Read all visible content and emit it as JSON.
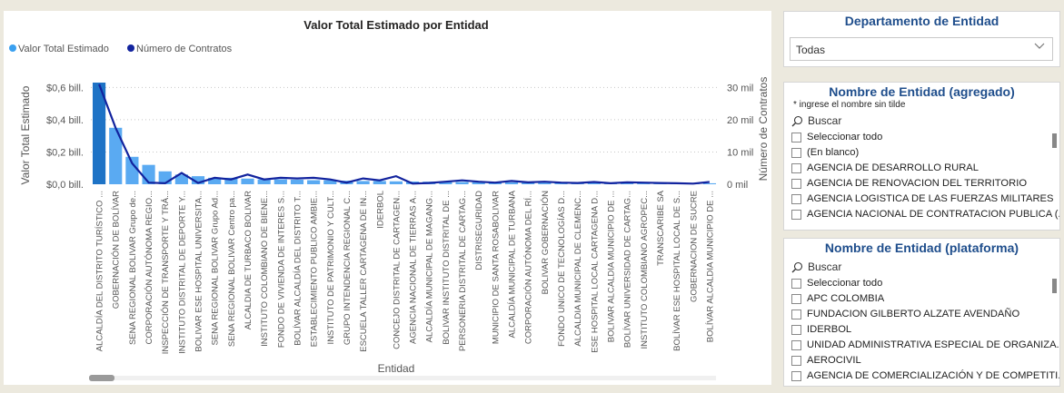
{
  "colors": {
    "bar": "#5aaaf2",
    "bar_highlight": "#1e73c6",
    "line": "#12239e",
    "title": "#1f4e8c"
  },
  "chart": {
    "title": "Valor Total Estimado por Entidad",
    "legend": [
      {
        "label": "Valor Total Estimado",
        "color": "#3aa0f0"
      },
      {
        "label": "Número de Contratos",
        "color": "#12239e"
      }
    ]
  },
  "chart_data": {
    "type": "bar",
    "title": "Valor Total Estimado por Entidad",
    "xlabel": "Entidad",
    "ylabel": "Valor Total Estimado",
    "y2label": "Número de Contratos",
    "yticks": [
      "$0,0 bill.",
      "$0,2 bill.",
      "$0,4 bill.",
      "$0,6 bill."
    ],
    "y2ticks": [
      "0 mil",
      "10 mil",
      "20 mil",
      "30 mil"
    ],
    "ylim": [
      0,
      0.63
    ],
    "y2lim": [
      0,
      31500
    ],
    "legend_position": "top-left",
    "grid": true,
    "categories": [
      "ALCALDÍA DEL DISTRITO TURÍSTICO ...",
      "GOBERNACIÓN DE BOLÍVAR",
      "SENA REGIONAL BOLIVAR Grupo de...",
      "CORPORACIÓN AUTÓNOMA REGIO...",
      "INSPECCIÓN DE TRANSPORTE Y TRÁ...",
      "INSTITUTO DISTRITAL DE DEPORTE Y...",
      "BOLIVAR ESE HOSPITAL UNIVERSITA...",
      "SENA REGIONAL BOLIVAR Grupo Ad...",
      "SENA REGIONAL BOLIVAR Centro pa...",
      "ALCALDIA DE TURBACO BOLIVAR",
      "INSTITUTO COLOMBIANO DE BIENE...",
      "FONDO DE VIVIENDA DE INTERES S...",
      "BOLÍVAR ALCALDÍA DEL DISTRITO T...",
      "ESTABLECIMIENTO PUBLICO AMBIE...",
      "INSTITUTO DE PATRIMONIO Y CULT...",
      "GRUPO INTENDENCIA REGIONAL C...",
      "ESCUELA TALLER CARTAGENA DE IN...",
      "IDERBOL",
      "CONCEJO DISTRITAL DE CARTAGEN...",
      "AGENCIA NACIONAL DE TIERRAS A...",
      "ALCALDÍA MUNICIPAL DE MAGANG...",
      "BOLIVAR INSTITUTO DISTRITAL DE ...",
      "PERSONERIA DISTRITAL DE CARTAG...",
      "DISTRISEGURIDAD",
      "MUNICIPIO DE SANTA ROSABOLIVAR",
      "ALCALDÍA MUNICIPAL DE TURBANA",
      "CORPORACIÓN AUTÓNOMA DEL RÍ...",
      "BOLIVAR GOBERNACIÓN",
      "FONDO UNICO DE TECNOLOGÍAS D...",
      "ALCALDIA MUNICIPAL DE CLEMENC...",
      "ESE HOSPITAL LOCAL CARTAGENA D...",
      "BOLIVAR ALCALDIA MUNICIPIO DE ...",
      "BOLÍVAR UNIVERSIDAD DE CARTAG...",
      "INSTITUTO COLOMBIANO AGROPEC...",
      "TRANSCARIBE SA",
      "BOLÍVAR ESE HOSPITAL LOCAL DE S...",
      "GOBERNACION DE SUCRE",
      "BOLÍVAR ALCALDIA MUNICIPIO DE ..."
    ],
    "series": [
      {
        "name": "Valor Total Estimado",
        "values": [
          0.63,
          0.35,
          0.17,
          0.12,
          0.08,
          0.06,
          0.05,
          0.04,
          0.04,
          0.035,
          0.03,
          0.03,
          0.028,
          0.025,
          0.025,
          0.022,
          0.02,
          0.02,
          0.018,
          0.017,
          0.016,
          0.015,
          0.014,
          0.013,
          0.012,
          0.012,
          0.011,
          0.01,
          0.01,
          0.009,
          0.009,
          0.008,
          0.008,
          0.007,
          0.007,
          0.006,
          0.006,
          0.006
        ]
      },
      {
        "name": "Número de Contratos",
        "values": [
          31000,
          17500,
          6500,
          500,
          300,
          3500,
          400,
          2000,
          1500,
          3000,
          1500,
          2000,
          1800,
          2000,
          1500,
          500,
          1800,
          1200,
          2500,
          200,
          400,
          800,
          1200,
          800,
          500,
          1000,
          600,
          800,
          500,
          400,
          700,
          300,
          600,
          500,
          400,
          300,
          200,
          700
        ]
      }
    ]
  },
  "slicers": {
    "departamento": {
      "title": "Departamento de Entidad",
      "selected": "Todas"
    },
    "agregado": {
      "title": "Nombre de Entidad (agregado)",
      "hint": "* ingrese el nombre sin tilde",
      "search_placeholder": "Buscar",
      "items": [
        "Seleccionar todo",
        "(En blanco)",
        "AGENCIA DE DESARROLLO RURAL",
        "AGENCIA DE RENOVACION DEL TERRITORIO",
        "AGENCIA LOGISTICA DE LAS FUERZAS MILITARES",
        "AGENCIA NACIONAL DE CONTRATACION PUBLICA (..."
      ]
    },
    "plataforma": {
      "title": "Nombre de Entidad (plataforma)",
      "search_placeholder": "Buscar",
      "items": [
        "Seleccionar todo",
        "APC COLOMBIA",
        "FUNDACION GILBERTO ALZATE AVENDAÑO",
        "IDERBOL",
        "UNIDAD ADMINISTRATIVA ESPECIAL DE ORGANIZA...",
        "AEROCIVIL",
        "AGENCIA DE COMERCIALIZACIÓN Y DE COMPETITI..."
      ]
    }
  }
}
